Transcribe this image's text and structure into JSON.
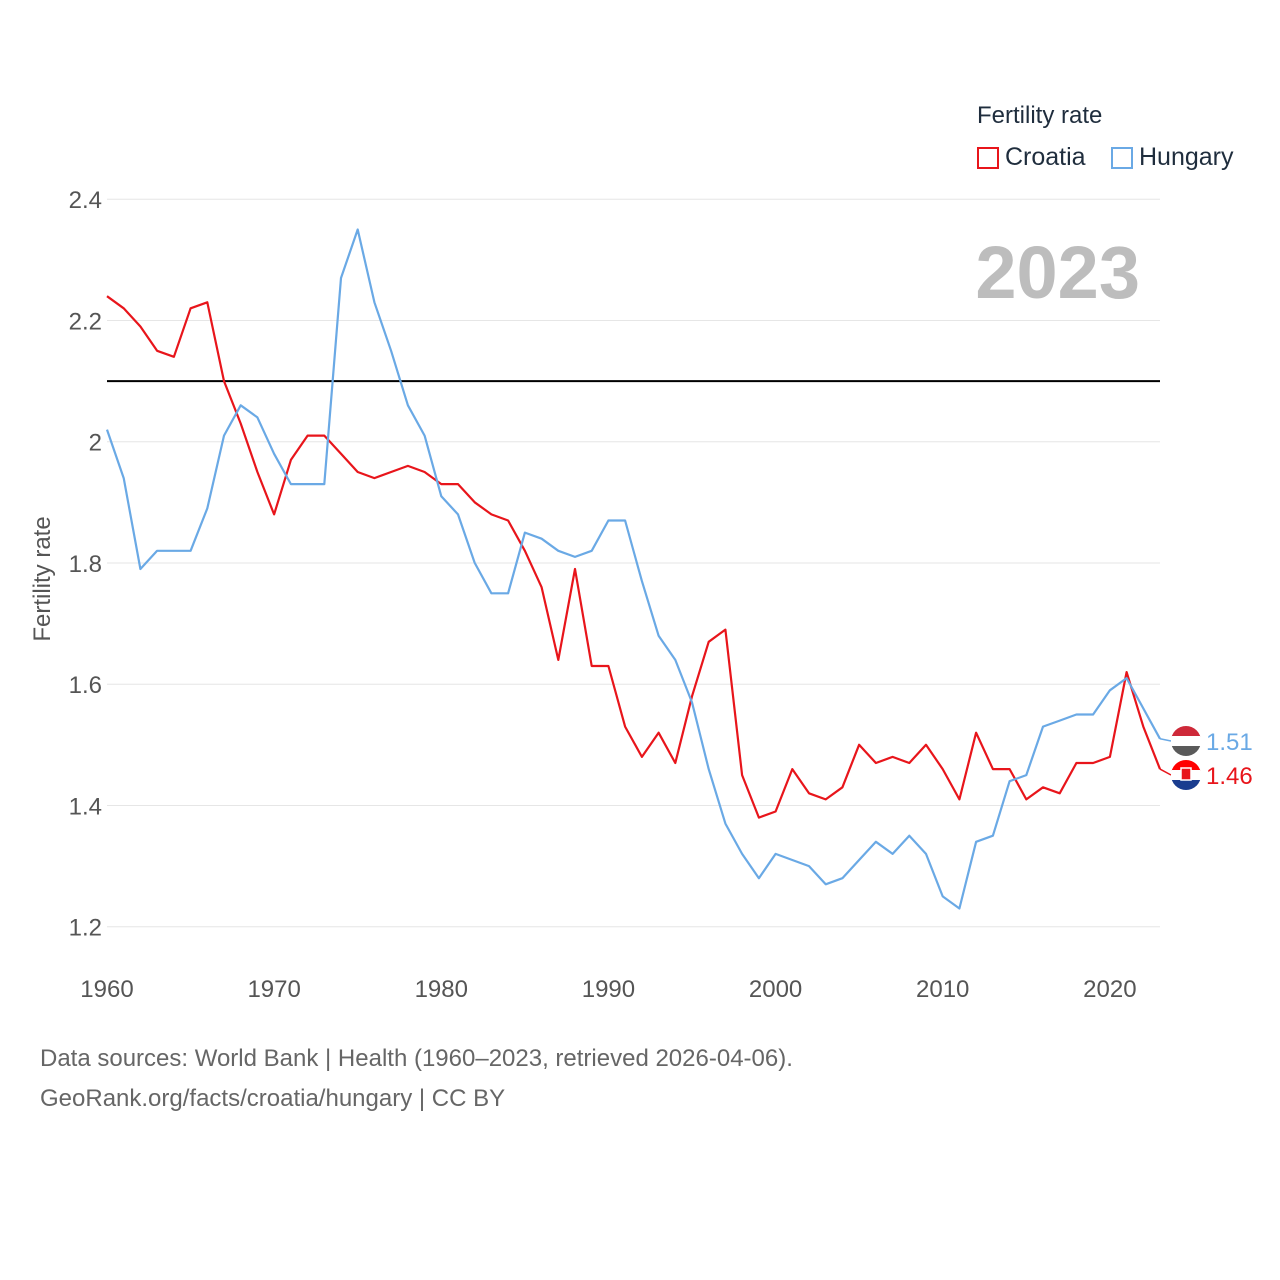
{
  "legend": {
    "title": "Fertility rate",
    "items": [
      {
        "label": "Croatia",
        "color": "#e8151b"
      },
      {
        "label": "Hungary",
        "color": "#6aa9e5"
      }
    ]
  },
  "chart_data": {
    "type": "line",
    "ylabel": "Fertility rate",
    "xlabel": "",
    "year_label": "2023",
    "x": [
      1960,
      1961,
      1962,
      1963,
      1964,
      1965,
      1966,
      1967,
      1968,
      1969,
      1970,
      1971,
      1972,
      1973,
      1974,
      1975,
      1976,
      1977,
      1978,
      1979,
      1980,
      1981,
      1982,
      1983,
      1984,
      1985,
      1986,
      1987,
      1988,
      1989,
      1990,
      1991,
      1992,
      1993,
      1994,
      1995,
      1996,
      1997,
      1998,
      1999,
      2000,
      2001,
      2002,
      2003,
      2004,
      2005,
      2006,
      2007,
      2008,
      2009,
      2010,
      2011,
      2012,
      2013,
      2014,
      2015,
      2016,
      2017,
      2018,
      2019,
      2020,
      2021,
      2022,
      2023
    ],
    "xlim": [
      1960,
      2023
    ],
    "ylim": [
      1.15,
      2.43
    ],
    "x_ticks": [
      1960,
      1970,
      1980,
      1990,
      2000,
      2010,
      2020
    ],
    "y_ticks": [
      1.2,
      1.4,
      1.6,
      1.8,
      2,
      2.2,
      2.4
    ],
    "y_tick_labels": [
      "1.2",
      "1.4",
      "1.6",
      "1.8",
      "2",
      "2.2",
      "2.4"
    ],
    "reference_line": 2.1,
    "series": [
      {
        "name": "Croatia",
        "color": "#e8151b",
        "end_label": "1.46",
        "values": [
          2.24,
          2.22,
          2.19,
          2.15,
          2.14,
          2.22,
          2.23,
          2.1,
          2.03,
          1.95,
          1.88,
          1.97,
          2.01,
          2.01,
          1.98,
          1.95,
          1.94,
          1.95,
          1.96,
          1.95,
          1.93,
          1.93,
          1.9,
          1.88,
          1.87,
          1.82,
          1.76,
          1.64,
          1.79,
          1.63,
          1.63,
          1.53,
          1.48,
          1.52,
          1.47,
          1.58,
          1.67,
          1.69,
          1.45,
          1.38,
          1.39,
          1.46,
          1.42,
          1.41,
          1.43,
          1.5,
          1.47,
          1.48,
          1.47,
          1.5,
          1.46,
          1.41,
          1.52,
          1.46,
          1.46,
          1.41,
          1.43,
          1.42,
          1.47,
          1.47,
          1.48,
          1.62,
          1.53,
          1.46
        ]
      },
      {
        "name": "Hungary",
        "color": "#6aa9e5",
        "end_label": "1.51",
        "values": [
          2.02,
          1.94,
          1.79,
          1.82,
          1.82,
          1.82,
          1.89,
          2.01,
          2.06,
          2.04,
          1.98,
          1.93,
          1.93,
          1.93,
          2.27,
          2.35,
          2.23,
          2.15,
          2.06,
          2.01,
          1.91,
          1.88,
          1.8,
          1.75,
          1.75,
          1.85,
          1.84,
          1.82,
          1.81,
          1.82,
          1.87,
          1.87,
          1.77,
          1.68,
          1.64,
          1.57,
          1.46,
          1.37,
          1.32,
          1.28,
          1.32,
          1.31,
          1.3,
          1.27,
          1.28,
          1.31,
          1.34,
          1.32,
          1.35,
          1.32,
          1.25,
          1.23,
          1.34,
          1.35,
          1.44,
          1.45,
          1.53,
          1.54,
          1.55,
          1.55,
          1.59,
          1.61,
          1.56,
          1.51
        ]
      }
    ]
  },
  "source": {
    "line1": "Data sources: World Bank | Health (1960–2023, retrieved 2026-04-06).",
    "line2": "GeoRank.org/facts/croatia/hungary | CC BY"
  }
}
